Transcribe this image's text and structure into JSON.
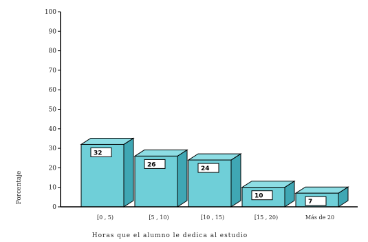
{
  "chart_data": {
    "type": "bar",
    "categories": [
      "[0 , 5)",
      "[5 , 10)",
      "[10 , 15)",
      "[15 , 20)",
      "Más de 20"
    ],
    "values": [
      32,
      26,
      24,
      10,
      7
    ],
    "data_labels": [
      "32",
      "26",
      "24",
      "10",
      "7"
    ],
    "xlabel": "Horas que el alumno le dedica al estudio",
    "ylabel": "Porcentaje",
    "ylim": [
      0,
      100
    ],
    "yticks": [
      0,
      10,
      20,
      30,
      40,
      50,
      60,
      70,
      80,
      90,
      100
    ],
    "grid": false,
    "legend": "none",
    "style": "3d-bar",
    "colors": {
      "bar_front": "#6fcfd8",
      "bar_top": "#8ddde4",
      "bar_side": "#3fa7b4",
      "stroke": "#000000"
    }
  }
}
